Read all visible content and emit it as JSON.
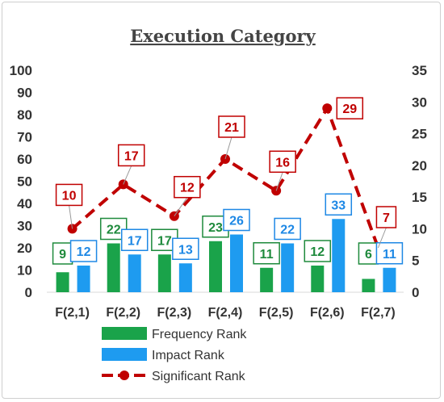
{
  "chart_data": {
    "type": "bar",
    "title": "Execution Category",
    "categories": [
      "F(2,1)",
      "F(2,2)",
      "F(2,3)",
      "F(2,4)",
      "F(2,5)",
      "F(2,6)",
      "F(2,7)"
    ],
    "series": [
      {
        "name": "Frequency Rank",
        "type": "bar",
        "axis": "left",
        "color": "#1aa34a",
        "values": [
          9,
          22,
          17,
          23,
          11,
          12,
          6
        ]
      },
      {
        "name": "Impact Rank",
        "type": "bar",
        "axis": "left",
        "color": "#1e9bf0",
        "values": [
          12,
          17,
          13,
          26,
          22,
          33,
          11
        ]
      },
      {
        "name": "Significant Rank",
        "type": "line",
        "axis": "right",
        "color": "#c00000",
        "values": [
          10,
          17,
          12,
          21,
          16,
          29,
          7
        ]
      }
    ],
    "y_left": {
      "min": 0,
      "max": 100,
      "step": 10
    },
    "y_right": {
      "min": 0,
      "max": 35,
      "step": 5
    },
    "grid": false,
    "legend": "bottom"
  }
}
